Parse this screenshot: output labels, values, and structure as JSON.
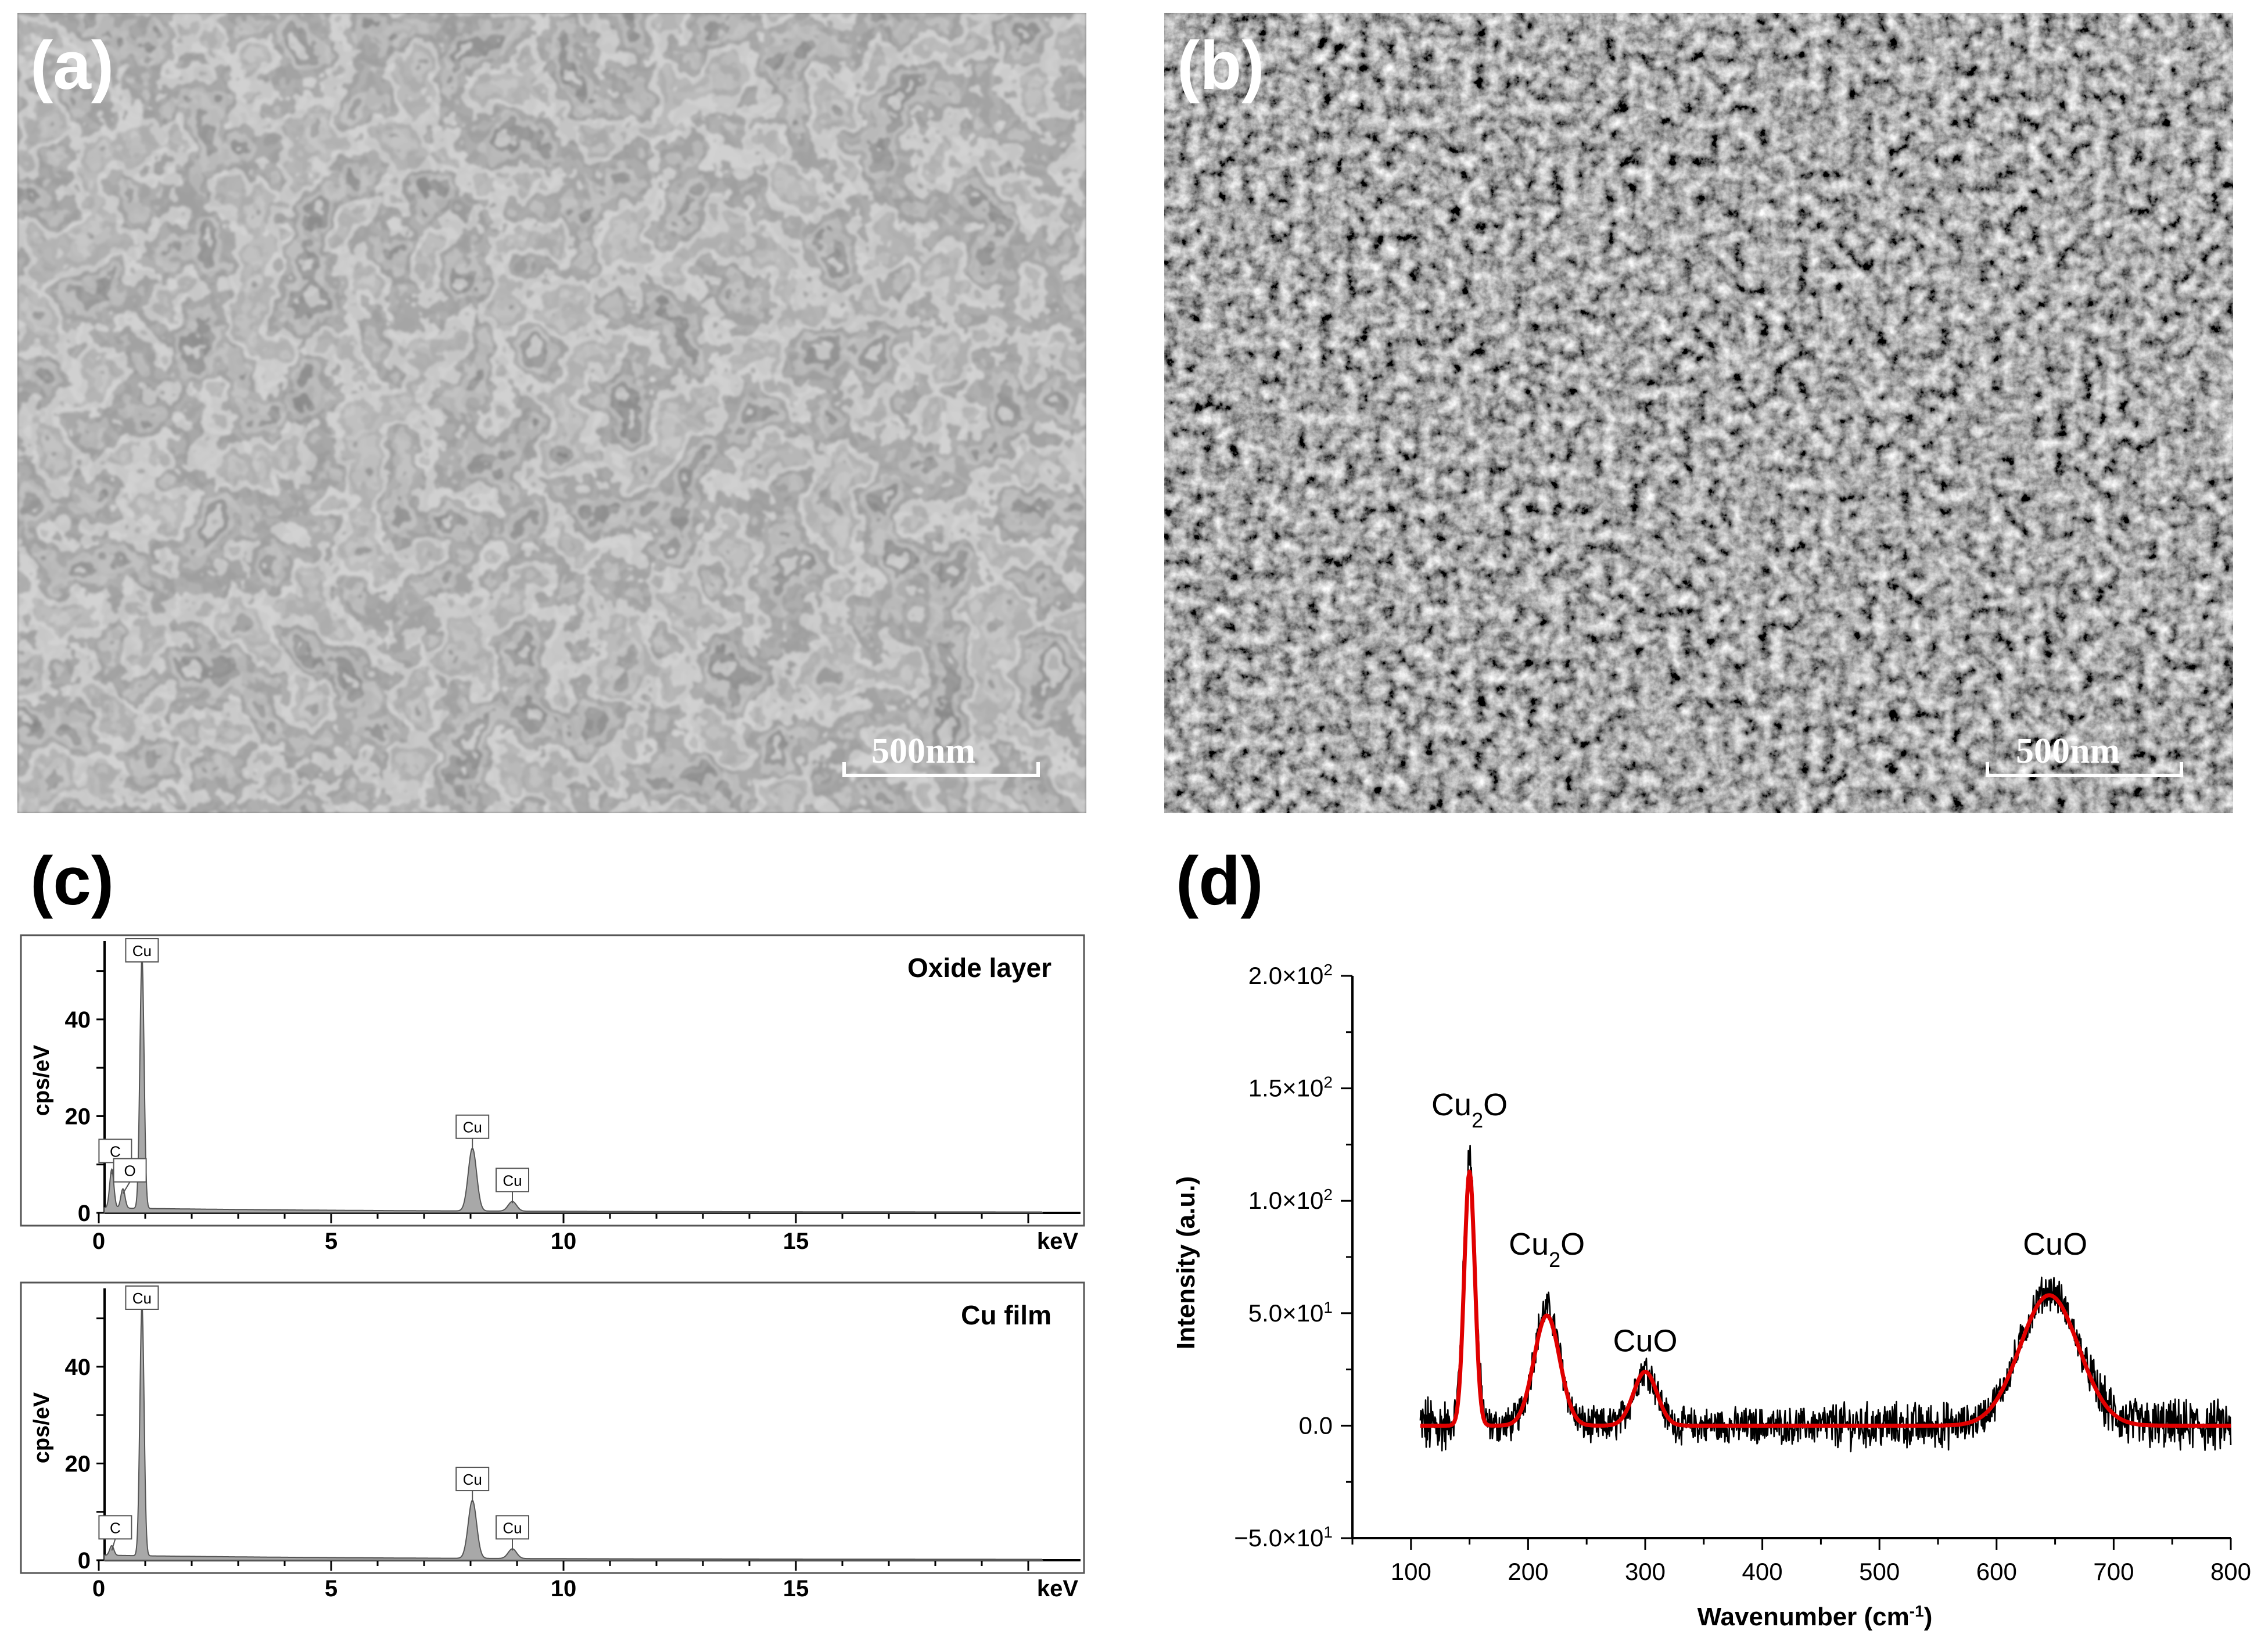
{
  "panels": {
    "a": {
      "label": "(a)",
      "scalebar": "500nm"
    },
    "b": {
      "label": "(b)",
      "scalebar": "500nm"
    },
    "c": {
      "label": "(c)"
    },
    "d": {
      "label": "(d)"
    }
  },
  "chart_data": [
    {
      "type": "bar",
      "panel": "c",
      "subplot": "top",
      "annotation": "Oxide layer",
      "ylabel": "cps/eV",
      "xunit": "keV",
      "xlim": [
        0,
        20.5
      ],
      "ylim": [
        0,
        55
      ],
      "xticks": [
        "0",
        "5",
        "10",
        "15"
      ],
      "yticks": [
        "0",
        "20",
        "40"
      ],
      "peaks": [
        {
          "element": "C",
          "energy": 0.28,
          "intensity": 8
        },
        {
          "element": "O",
          "energy": 0.52,
          "intensity": 4
        },
        {
          "element": "Cu",
          "energy": 0.93,
          "intensity": 52
        },
        {
          "element": "Cu",
          "energy": 8.04,
          "intensity": 13
        },
        {
          "element": "Cu",
          "energy": 8.9,
          "intensity": 2
        }
      ]
    },
    {
      "type": "bar",
      "panel": "c",
      "subplot": "bottom",
      "annotation": "Cu film",
      "ylabel": "cps/eV",
      "xunit": "keV",
      "xlim": [
        0,
        20.5
      ],
      "ylim": [
        0,
        55
      ],
      "xticks": [
        "0",
        "5",
        "10",
        "15"
      ],
      "yticks": [
        "0",
        "20",
        "40"
      ],
      "peaks": [
        {
          "element": "C",
          "energy": 0.28,
          "intensity": 2
        },
        {
          "element": "Cu",
          "energy": 0.93,
          "intensity": 52
        },
        {
          "element": "Cu",
          "energy": 8.04,
          "intensity": 12
        },
        {
          "element": "Cu",
          "energy": 8.9,
          "intensity": 2
        }
      ]
    },
    {
      "type": "line",
      "panel": "d",
      "xlabel": "Wavenumber (cm",
      "xlabel_sup": "-1",
      "xlabel_close": ")",
      "ylabel": "Intensity (a.u.)",
      "xlim": [
        50,
        800
      ],
      "ylim": [
        -50,
        200
      ],
      "xticks": [
        100,
        200,
        300,
        400,
        500,
        600,
        700,
        800
      ],
      "yticks": [
        {
          "value": -50,
          "mantissa": "−5.0×10",
          "exp": "1"
        },
        {
          "value": 0,
          "mantissa": "0.0",
          "exp": ""
        },
        {
          "value": 50,
          "mantissa": "5.0×10",
          "exp": "1"
        },
        {
          "value": 100,
          "mantissa": "1.0×10",
          "exp": "2"
        },
        {
          "value": 150,
          "mantissa": "1.5×10",
          "exp": "2"
        },
        {
          "value": 200,
          "mantissa": "2.0×10",
          "exp": "2"
        }
      ],
      "series": [
        {
          "role": "measured",
          "color": "#000000",
          "peaks": [
            {
              "center": 150,
              "height": 120,
              "width": 5
            },
            {
              "center": 216,
              "height": 52,
              "width": 11
            },
            {
              "center": 300,
              "height": 25,
              "width": 10
            },
            {
              "center": 645,
              "height": 60,
              "width": 25
            }
          ],
          "x_range": [
            108,
            800
          ]
        },
        {
          "role": "fit",
          "color": "#e00000",
          "peaks": [
            {
              "center": 150,
              "height": 113,
              "width": 4.5
            },
            {
              "center": 216,
              "height": 49,
              "width": 11
            },
            {
              "center": 300,
              "height": 24,
              "width": 10
            },
            {
              "center": 645,
              "height": 58,
              "width": 25
            }
          ],
          "x_range": [
            108,
            800
          ]
        }
      ],
      "annotations": [
        {
          "x": 150,
          "y": 138,
          "base": "Cu",
          "sub": "2",
          "rest": "O"
        },
        {
          "x": 216,
          "y": 76,
          "base": "Cu",
          "sub": "2",
          "rest": "O"
        },
        {
          "x": 300,
          "y": 33,
          "base": "CuO",
          "sub": "",
          "rest": ""
        },
        {
          "x": 650,
          "y": 76,
          "base": "CuO",
          "sub": "",
          "rest": ""
        }
      ]
    }
  ]
}
